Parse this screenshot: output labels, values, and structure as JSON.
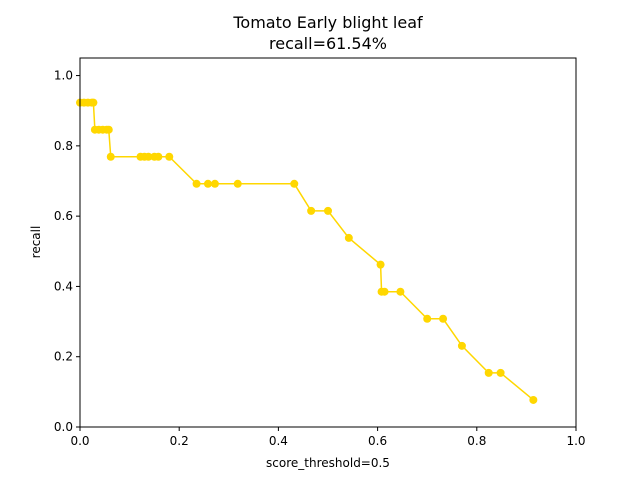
{
  "chart_data": {
    "type": "line",
    "title": "Tomato Early blight leaf",
    "subtitle": "recall=61.54%",
    "xlabel": "score_threshold=0.5",
    "ylabel": "recall",
    "xlim": [
      0,
      1.0
    ],
    "ylim": [
      0,
      1.05
    ],
    "xticks": [
      "0.0",
      "0.2",
      "0.4",
      "0.6",
      "0.8",
      "1.0"
    ],
    "yticks": [
      "0.0",
      "0.2",
      "0.4",
      "0.6",
      "0.8",
      "1.0"
    ],
    "grid": false,
    "line_color": "#ffd700",
    "series": [
      {
        "x": [
          0.0,
          0.008,
          0.016,
          0.024,
          0.027,
          0.03,
          0.038,
          0.046,
          0.054,
          0.058,
          0.062,
          0.122,
          0.13,
          0.138,
          0.15,
          0.158,
          0.18,
          0.235,
          0.258,
          0.272,
          0.318,
          0.432,
          0.466,
          0.5,
          0.542,
          0.606,
          0.608,
          0.614,
          0.646,
          0.7,
          0.732,
          0.77,
          0.824,
          0.848,
          0.914
        ],
        "y": [
          0.923,
          0.923,
          0.923,
          0.923,
          0.923,
          0.846,
          0.846,
          0.846,
          0.846,
          0.846,
          0.769,
          0.769,
          0.769,
          0.769,
          0.769,
          0.769,
          0.769,
          0.692,
          0.692,
          0.692,
          0.692,
          0.692,
          0.615,
          0.615,
          0.538,
          0.462,
          0.385,
          0.385,
          0.385,
          0.308,
          0.308,
          0.231,
          0.154,
          0.154,
          0.077
        ]
      }
    ]
  }
}
